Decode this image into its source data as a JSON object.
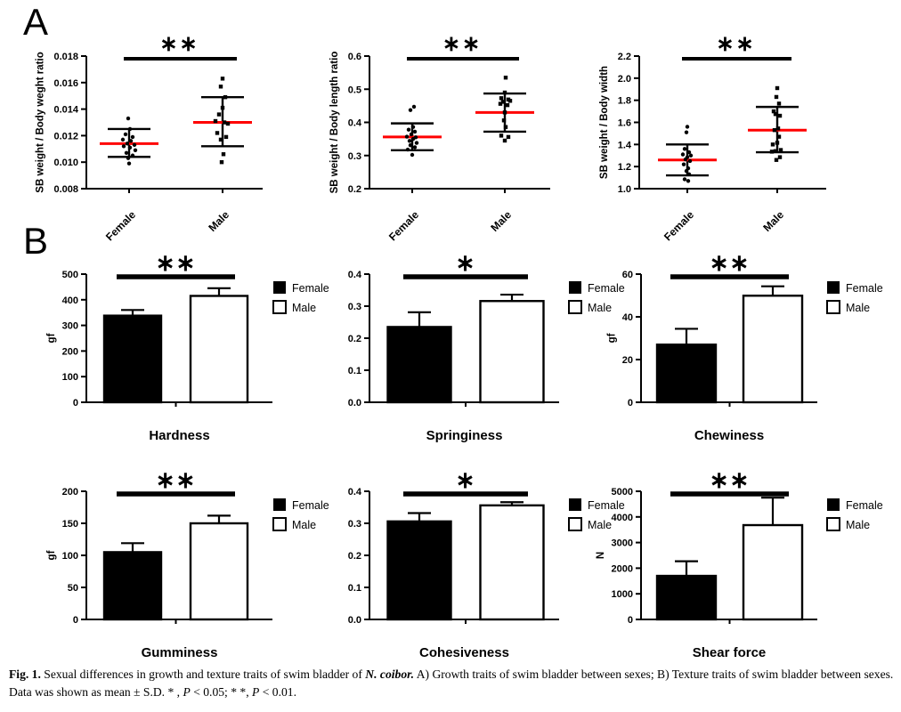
{
  "figure": {
    "panel_a": {
      "label": "A",
      "charts": [
        {
          "name": "sb-weight-body-weight-ratio",
          "ylabel": "SB weight / Body weght ratio",
          "ylim": [
            0.008,
            0.018
          ],
          "yticks": [
            "0.008",
            "0.010",
            "0.012",
            "0.014",
            "0.016",
            "0.018"
          ],
          "sig": "**",
          "groups": [
            {
              "name": "Female",
              "marker": "circle",
              "mean": 0.0114,
              "sd_low": 0.0104,
              "sd_high": 0.0125,
              "points": [
                [
                  -1,
                  0.0133
                ],
                [
                  1,
                  0.0125
                ],
                [
                  -4,
                  0.0121
                ],
                [
                  4,
                  0.0119
                ],
                [
                  -7,
                  0.0117
                ],
                [
                  2,
                  0.0116
                ],
                [
                  -2,
                  0.0114
                ],
                [
                  6,
                  0.0113
                ],
                [
                  -6,
                  0.0112
                ],
                [
                  1,
                  0.0111
                ],
                [
                  7,
                  0.0109
                ],
                [
                  -3,
                  0.0107
                ],
                [
                  4,
                  0.0105
                ],
                [
                  -1,
                  0.0103
                ],
                [
                  0,
                  0.0099
                ]
              ]
            },
            {
              "name": "Male",
              "marker": "square",
              "mean": 0.013,
              "sd_low": 0.0112,
              "sd_high": 0.0149,
              "points": [
                [
                  0,
                  0.0163
                ],
                [
                  -2,
                  0.0157
                ],
                [
                  3,
                  0.0149
                ],
                [
                  0,
                  0.0141
                ],
                [
                  -4,
                  0.0136
                ],
                [
                  -8,
                  0.0131
                ],
                [
                  2,
                  0.013
                ],
                [
                  6,
                  0.0129
                ],
                [
                  -6,
                  0.0122
                ],
                [
                  4,
                  0.0119
                ],
                [
                  -2,
                  0.0117
                ],
                [
                  1,
                  0.0106
                ],
                [
                  -1,
                  0.01
                ]
              ]
            }
          ]
        },
        {
          "name": "sb-weight-body-length-ratio",
          "ylabel": "SB weight / Body length ratio",
          "ylim": [
            0.2,
            0.6
          ],
          "yticks": [
            "0.2",
            "0.3",
            "0.4",
            "0.5",
            "0.6"
          ],
          "sig": "**",
          "groups": [
            {
              "name": "Female",
              "marker": "circle",
              "mean": 0.356,
              "sd_low": 0.316,
              "sd_high": 0.397,
              "points": [
                [
                  2,
                  0.447
                ],
                [
                  -2,
                  0.437
                ],
                [
                  1,
                  0.386
                ],
                [
                  -4,
                  0.378
                ],
                [
                  3,
                  0.372
                ],
                [
                  -1,
                  0.364
                ],
                [
                  -6,
                  0.357
                ],
                [
                  4,
                  0.355
                ],
                [
                  1,
                  0.35
                ],
                [
                  -3,
                  0.344
                ],
                [
                  5,
                  0.338
                ],
                [
                  -2,
                  0.331
                ],
                [
                  3,
                  0.325
                ],
                [
                  -5,
                  0.318
                ],
                [
                  0,
                  0.302
                ]
              ]
            },
            {
              "name": "Male",
              "marker": "square",
              "mean": 0.43,
              "sd_low": 0.372,
              "sd_high": 0.487,
              "points": [
                [
                  1,
                  0.535
                ],
                [
                  0,
                  0.49
                ],
                [
                  -4,
                  0.473
                ],
                [
                  4,
                  0.469
                ],
                [
                  6,
                  0.465
                ],
                [
                  -2,
                  0.462
                ],
                [
                  -5,
                  0.456
                ],
                [
                  3,
                  0.452
                ],
                [
                  0,
                  0.43
                ],
                [
                  -1,
                  0.406
                ],
                [
                  1,
                  0.386
                ],
                [
                  -4,
                  0.36
                ],
                [
                  4,
                  0.356
                ],
                [
                  0,
                  0.345
                ]
              ]
            }
          ]
        },
        {
          "name": "sb-weight-body-width",
          "ylabel": "SB weight / Body width",
          "ylim": [
            1.0,
            2.2
          ],
          "yticks": [
            "1.0",
            "1.2",
            "1.4",
            "1.6",
            "1.8",
            "2.0",
            "2.2"
          ],
          "sig": "**",
          "groups": [
            {
              "name": "Female",
              "marker": "circle",
              "mean": 1.26,
              "sd_low": 1.12,
              "sd_high": 1.4,
              "points": [
                [
                  0,
                  1.56
                ],
                [
                  -1,
                  1.51
                ],
                [
                  -3,
                  1.36
                ],
                [
                  2,
                  1.33
                ],
                [
                  -5,
                  1.31
                ],
                [
                  4,
                  1.3
                ],
                [
                  0,
                  1.285
                ],
                [
                  -2,
                  1.265
                ],
                [
                  3,
                  1.25
                ],
                [
                  -4,
                  1.22
                ],
                [
                  1,
                  1.185
                ],
                [
                  -1,
                  1.16
                ],
                [
                  2,
                  1.13
                ],
                [
                  -3,
                  1.085
                ],
                [
                  1,
                  1.07
                ]
              ]
            },
            {
              "name": "Male",
              "marker": "square",
              "mean": 1.53,
              "sd_low": 1.33,
              "sd_high": 1.74,
              "points": [
                [
                  0,
                  1.91
                ],
                [
                  -1,
                  1.83
                ],
                [
                  2,
                  1.77
                ],
                [
                  -4,
                  1.7
                ],
                [
                  -2,
                  1.675
                ],
                [
                  3,
                  1.66
                ],
                [
                  1,
                  1.545
                ],
                [
                  -3,
                  1.53
                ],
                [
                  2,
                  1.47
                ],
                [
                  0,
                  1.415
                ],
                [
                  -5,
                  1.4
                ],
                [
                  4,
                  1.35
                ],
                [
                  -2,
                  1.34
                ],
                [
                  -6,
                  1.335
                ],
                [
                  3,
                  1.285
                ],
                [
                  -1,
                  1.26
                ]
              ]
            }
          ]
        }
      ]
    },
    "panel_b": {
      "label": "B",
      "legend": {
        "female": "Female",
        "male": "Male"
      },
      "charts": [
        {
          "title": "Hardness",
          "ylabel": "gf",
          "ylim": [
            0,
            500
          ],
          "yticks": [
            "0",
            "100",
            "200",
            "300",
            "400",
            "500"
          ],
          "sig": "**",
          "female": {
            "value": 338,
            "err_high": 360
          },
          "male": {
            "value": 415,
            "err_high": 445
          }
        },
        {
          "title": "Springiness",
          "ylabel": "",
          "ylim": [
            0,
            0.4
          ],
          "yticks": [
            "0.0",
            "0.1",
            "0.2",
            "0.3",
            "0.4"
          ],
          "sig": "*",
          "female": {
            "value": 0.235,
            "err_high": 0.281
          },
          "male": {
            "value": 0.316,
            "err_high": 0.336
          }
        },
        {
          "title": "Chewiness",
          "ylabel": "gf",
          "ylim": [
            0,
            60
          ],
          "yticks": [
            "0",
            "20",
            "40",
            "60"
          ],
          "sig": "**",
          "female": {
            "value": 27,
            "err_high": 34.4
          },
          "male": {
            "value": 49.9,
            "err_high": 54.3
          }
        },
        {
          "title": "Gumminess",
          "ylabel": "gf",
          "ylim": [
            0,
            200
          ],
          "yticks": [
            "0",
            "50",
            "100",
            "150",
            "200"
          ],
          "sig": "**",
          "female": {
            "value": 105,
            "err_high": 119
          },
          "male": {
            "value": 150,
            "err_high": 162
          }
        },
        {
          "title": "Cohesiveness",
          "ylabel": "",
          "ylim": [
            0,
            0.4
          ],
          "yticks": [
            "0.0",
            "0.1",
            "0.2",
            "0.3",
            "0.4"
          ],
          "sig": "*",
          "female": {
            "value": 0.306,
            "err_high": 0.332
          },
          "male": {
            "value": 0.356,
            "err_high": 0.366
          }
        },
        {
          "title": "Shear force",
          "ylabel": "N",
          "ylim": [
            0,
            5000
          ],
          "yticks": [
            "0",
            "1000",
            "2000",
            "3000",
            "4000",
            "5000"
          ],
          "sig": "**",
          "female": {
            "value": 1700,
            "err_high": 2270
          },
          "male": {
            "value": 3680,
            "err_high": 4750
          }
        }
      ]
    },
    "caption": {
      "segments": [
        {
          "text": "Fig. 1.",
          "style": "bold"
        },
        {
          "text": "  Sexual differences in growth and texture traits of swim bladder of ",
          "style": "normal"
        },
        {
          "text": "N. coibor.",
          "style": "bold-italic"
        },
        {
          "text": " A) Growth traits of swim bladder between sexes; B) Texture traits of swim bladder between sexes. Data was shown as mean ± S.D. * , ",
          "style": "normal"
        },
        {
          "text": "P",
          "style": "italic"
        },
        {
          "text": " < 0.05; * *, ",
          "style": "normal"
        },
        {
          "text": "P",
          "style": "italic"
        },
        {
          "text": " < 0.01.",
          "style": "normal"
        }
      ]
    },
    "colors": {
      "mean_line": "#FF0000",
      "black": "#000000",
      "white": "#FFFFFF"
    }
  }
}
